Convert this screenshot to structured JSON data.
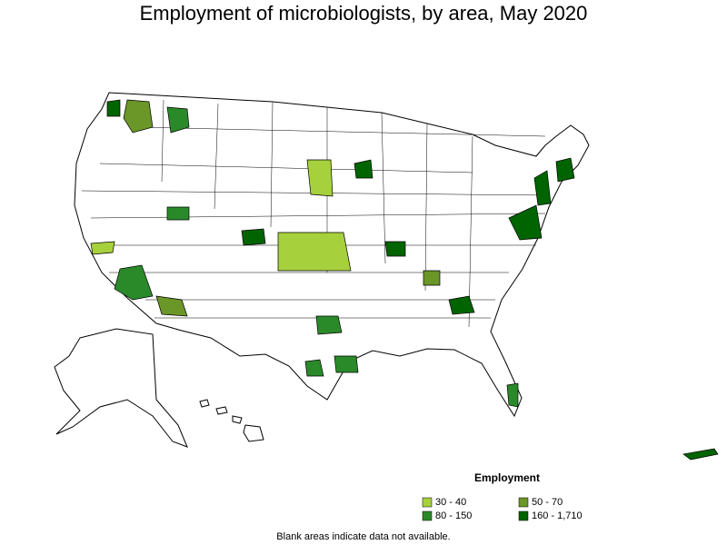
{
  "title": "Employment of microbiologists, by area, May 2020",
  "legend": {
    "title": "Employment",
    "items": [
      {
        "label": "30 - 40",
        "color": "#a6d13c"
      },
      {
        "label": "50 - 70",
        "color": "#6b9628"
      },
      {
        "label": "80 - 150",
        "color": "#2a8a2a"
      },
      {
        "label": "160 - 1,710",
        "color": "#006400"
      }
    ]
  },
  "footnote": "Blank areas indicate data not available."
}
